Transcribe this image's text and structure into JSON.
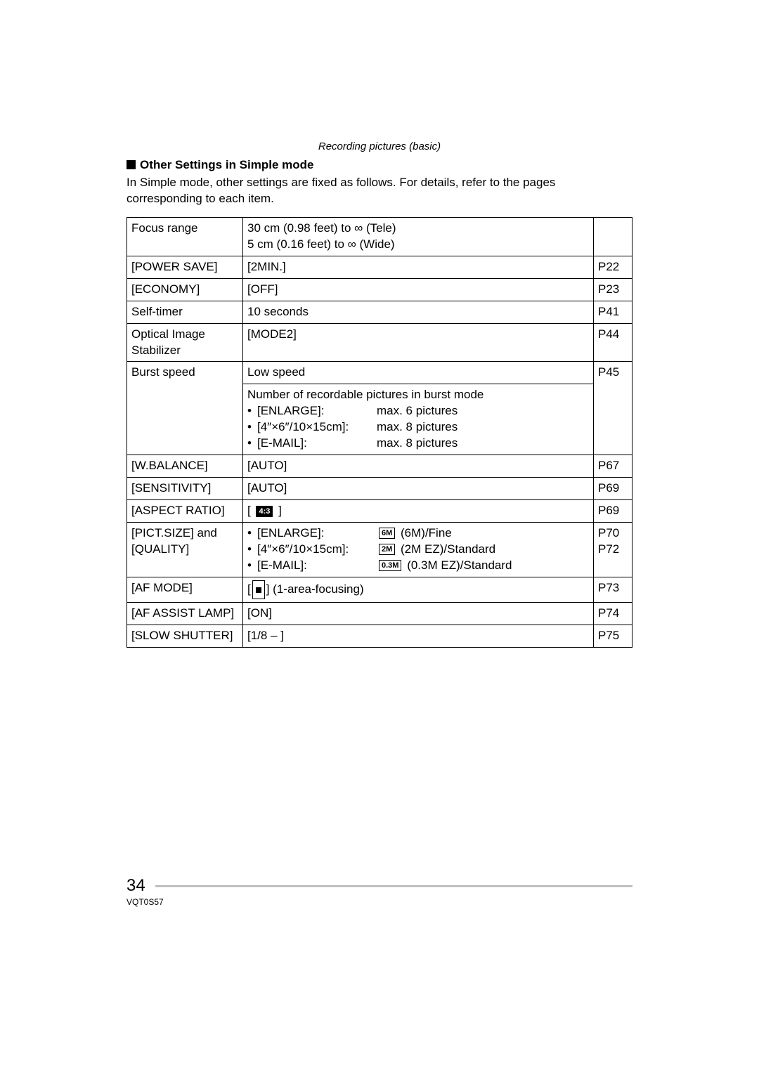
{
  "header": {
    "section": "Recording pictures (basic)",
    "subheading": "Other Settings in Simple mode",
    "intro": "In Simple mode, other settings are fixed as follows. For details, refer to the pages corresponding to each item."
  },
  "table": {
    "rows": [
      {
        "label": "Focus range",
        "value_lines": [
          "30 cm (0.98 feet) to ∞ (Tele)",
          "5 cm (0.16 feet) to ∞ (Wide)"
        ],
        "page": ""
      },
      {
        "label": "[POWER SAVE]",
        "value_lines": [
          "[2MIN.]"
        ],
        "page": "P22"
      },
      {
        "label": "[ECONOMY]",
        "value_lines": [
          "[OFF]"
        ],
        "page": "P23"
      },
      {
        "label": "Self-timer",
        "value_lines": [
          "10 seconds"
        ],
        "page": "P41"
      },
      {
        "label": "Optical Image Stabilizer",
        "value_lines": [
          "[MODE2]"
        ],
        "page": "P44"
      },
      {
        "label": "Burst speed",
        "value_lines": [
          "Low speed"
        ],
        "page": "P45"
      }
    ],
    "burst_detail": {
      "intro": "Number of recordable pictures in burst mode",
      "items": [
        {
          "key": "[ENLARGE]:",
          "val": "max. 6 pictures"
        },
        {
          "key": "[4″×6″/10×15cm]:",
          "val": "max. 8 pictures"
        },
        {
          "key": "[E-MAIL]:",
          "val": "max. 8 pictures"
        }
      ]
    },
    "rows2": [
      {
        "label": "[W.BALANCE]",
        "value_lines": [
          "[AUTO]"
        ],
        "page": "P67"
      },
      {
        "label": "[SENSITIVITY]",
        "value_lines": [
          "[AUTO]"
        ],
        "page": "P69"
      }
    ],
    "aspect": {
      "label": "[ASPECT RATIO]",
      "icon": "4:3",
      "page": "P69"
    },
    "pict": {
      "label1": "[PICT.SIZE] and",
      "label2": "[QUALITY]",
      "items": [
        {
          "key": "[ENLARGE]:",
          "icon": "6M",
          "val": "(6M)/Fine"
        },
        {
          "key": "[4″×6″/10×15cm]:",
          "icon": "2M",
          "val": "(2M EZ)/Standard"
        },
        {
          "key": "[E-MAIL]:",
          "icon": "0.3M",
          "val": "(0.3M EZ)/Standard"
        }
      ],
      "pages": [
        "P70",
        "P72"
      ]
    },
    "afmode": {
      "label": "[AF MODE]",
      "suffix": "(1-area-focusing)",
      "page": "P73"
    },
    "rows3": [
      {
        "label": "[AF ASSIST LAMP]",
        "value_lines": [
          "[ON]"
        ],
        "page": "P74"
      },
      {
        "label": "[SLOW SHUTTER]",
        "value_lines": [
          "[1/8 – ]"
        ],
        "page": "P75"
      }
    ]
  },
  "footer": {
    "page_number": "34",
    "doc_id": "VQT0S57"
  }
}
